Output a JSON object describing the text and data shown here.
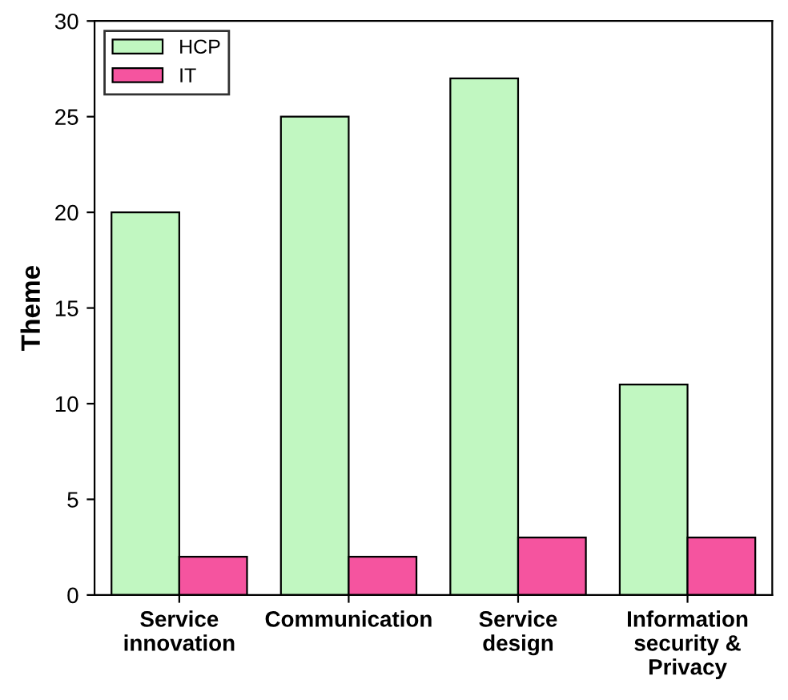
{
  "chart_data": {
    "type": "bar",
    "ylabel": "Theme",
    "categories": [
      "Service\ninnovation",
      "Communication",
      "Service\ndesign",
      "Information\nsecurity &\nPrivacy"
    ],
    "series": [
      {
        "name": "HCP",
        "color": "#c1f7c1",
        "values": [
          20,
          25,
          27,
          11
        ]
      },
      {
        "name": "IT",
        "color": "#f5549f",
        "values": [
          2,
          2,
          3,
          3
        ]
      }
    ],
    "ylim": [
      0,
      30
    ],
    "yticks": [
      0,
      5,
      10,
      15,
      20,
      25,
      30
    ],
    "grid": false,
    "legend": "top left"
  }
}
